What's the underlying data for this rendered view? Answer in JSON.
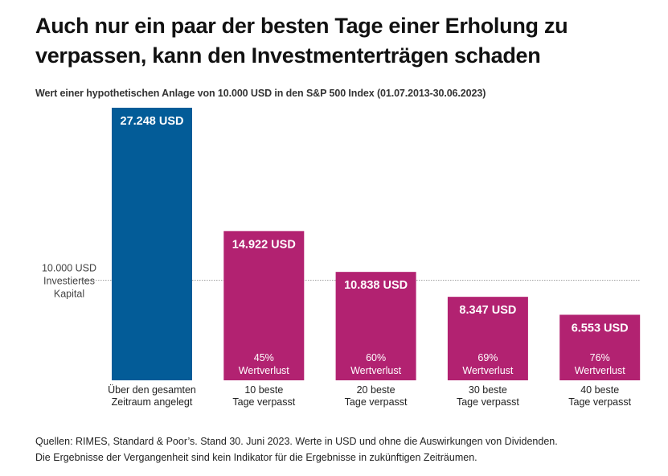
{
  "header": {
    "title_line1": "Auch nur ein paar der besten Tage einer Erholung zu",
    "title_line2": "verpassen, kann den Investmenterträgen schaden",
    "subtitle": "Wert einer hypothetischen Anlage von 10.000 USD in den S&P 500 Index (01.07.2013-30.06.2023)"
  },
  "chart_data": {
    "type": "bar",
    "title": "Wert einer hypothetischen Anlage von 10.000 USD in den S&P 500 Index (01.07.2013-30.06.2023)",
    "xlabel": "",
    "ylabel": "",
    "ylim": [
      0,
      27248
    ],
    "grid": false,
    "categories": [
      [
        "Über den gesamten",
        "Zeitraum angelegt"
      ],
      [
        "10 beste",
        "Tage verpasst"
      ],
      [
        "20 beste",
        "Tage verpasst"
      ],
      [
        "30 beste",
        "Tage verpasst"
      ],
      [
        "40 beste",
        "Tage verpasst"
      ]
    ],
    "values": [
      27248,
      14922,
      10838,
      8347,
      6553
    ],
    "value_labels": [
      "27.248 USD",
      "14.922 USD",
      "10.838 USD",
      "8.347 USD",
      "6.553 USD"
    ],
    "loss_labels": [
      null,
      [
        "45%",
        "Wertverlust"
      ],
      [
        "60%",
        "Wertverlust"
      ],
      [
        "69%",
        "Wertverlust"
      ],
      [
        "76%",
        "Wertverlust"
      ]
    ],
    "colors": [
      "#035c98",
      "#b22271",
      "#b22271",
      "#b22271",
      "#b22271"
    ],
    "reference_line": {
      "value": 10000,
      "label": [
        "10.000 USD",
        "Investiertes",
        "Kapital"
      ],
      "style": "dotted",
      "color": "#9a9a9a"
    }
  },
  "footer": {
    "source_line1": "Quellen: RIMES, Standard & Poor’s. Stand 30. Juni 2023. Werte in USD und ohne die Auswirkungen von Dividenden.",
    "source_line2": "Die Ergebnisse der Vergangenheit sind kein Indikator für die Ergebnisse in zukünftigen Zeiträumen."
  }
}
